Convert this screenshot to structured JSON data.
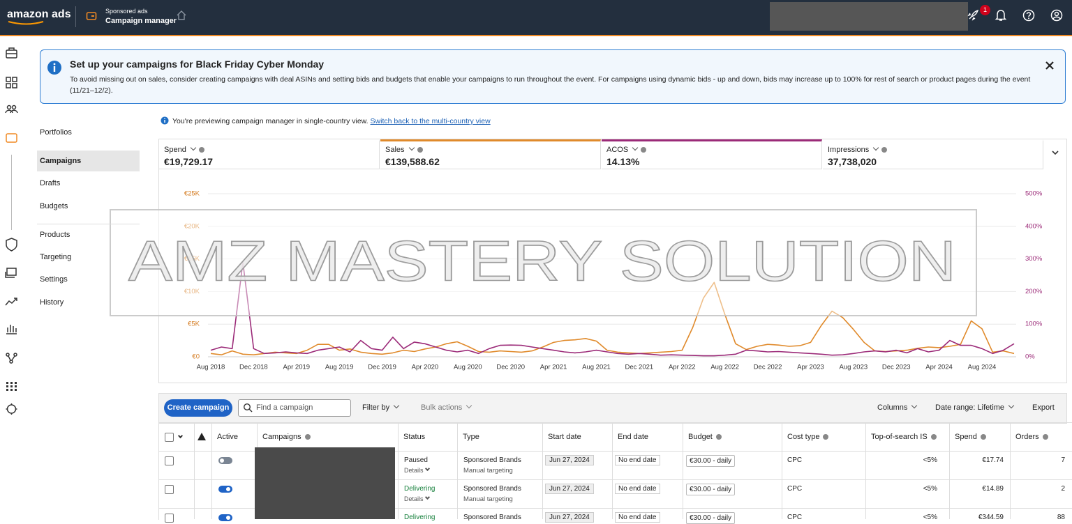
{
  "topbar": {
    "brand": "amazon ads",
    "section": "Sponsored ads",
    "page": "Campaign manager",
    "notification_count": 1
  },
  "banner": {
    "title": "Set up your campaigns for Black Friday Cyber Monday",
    "text": "To avoid missing out on sales, consider creating campaigns with deal ASINs and setting bids and budgets that enable your campaigns to run throughout the event. For campaigns using dynamic bids - up and down, bids may increase up to 100% for rest of search or product pages during the event (11/21–12/2)."
  },
  "nav": [
    "Portfolios",
    "Campaigns",
    "Drafts",
    "Budgets",
    "Products",
    "Targeting",
    "Settings",
    "History"
  ],
  "preview": {
    "text": "You're previewing campaign manager in single-country view.",
    "link": "Switch back to the multi-country view"
  },
  "metrics": [
    {
      "label": "Spend",
      "value": "€19,729.17"
    },
    {
      "label": "Sales",
      "value": "€139,588.62",
      "color": "#e08a2b"
    },
    {
      "label": "ACOS",
      "value": "14.13%",
      "color": "#9b2a78"
    },
    {
      "label": "Impressions",
      "value": "37,738,020"
    }
  ],
  "chart_data": {
    "type": "line",
    "categories": [
      "Aug 2018",
      null,
      null,
      null,
      "Dec 2018",
      null,
      null,
      null,
      "Apr 2019",
      null,
      null,
      null,
      "Aug 2019",
      null,
      null,
      null,
      "Dec 2019",
      null,
      null,
      null,
      "Apr 2020",
      null,
      null,
      null,
      "Aug 2020",
      null,
      null,
      null,
      "Dec 2020",
      null,
      null,
      null,
      "Apr 2021",
      null,
      null,
      null,
      "Aug 2021",
      null,
      null,
      null,
      "Dec 2021",
      null,
      null,
      null,
      "Apr 2022",
      null,
      null,
      null,
      "Aug 2022",
      null,
      null,
      null,
      "Dec 2022",
      null,
      null,
      null,
      "Apr 2023",
      null,
      null,
      null,
      "Aug 2023",
      null,
      null,
      null,
      "Dec 2023",
      null,
      null,
      null,
      "Apr 2024",
      null,
      null,
      null,
      "Aug 2024",
      null,
      null,
      null
    ],
    "series": [
      {
        "color": "#e08a2b",
        "values": [
          500,
          300,
          900,
          400,
          300,
          500,
          700,
          600,
          500,
          1000,
          1900,
          1900,
          1000,
          1200,
          700,
          500,
          400,
          600,
          1000,
          800,
          1200,
          1500,
          2000,
          2300,
          1600,
          800,
          700,
          900,
          800,
          700,
          900,
          1500,
          2200,
          2500,
          2600,
          2800,
          2400,
          1000,
          700,
          600,
          500,
          600,
          700,
          800,
          1000,
          4500,
          9000,
          11400,
          6500,
          2000,
          1100,
          1600,
          1900,
          1800,
          1600,
          1700,
          2200,
          4800,
          7000,
          6000,
          4200,
          2200,
          900,
          800,
          900,
          1000,
          1300,
          1500,
          1400,
          1600,
          1900,
          5500,
          4300,
          700,
          900,
          500
        ]
      },
      {
        "color": "#9b2a78",
        "axis": "y2",
        "values": [
          20,
          30,
          25,
          290,
          25,
          10,
          12,
          15,
          12,
          10,
          20,
          25,
          30,
          15,
          50,
          25,
          20,
          60,
          25,
          45,
          40,
          30,
          20,
          15,
          20,
          10,
          25,
          35,
          36,
          35,
          30,
          25,
          20,
          15,
          12,
          15,
          20,
          15,
          10,
          8,
          10,
          8,
          5,
          6,
          5,
          4,
          3,
          3,
          5,
          8,
          20,
          18,
          15,
          16,
          14,
          12,
          10,
          8,
          5,
          6,
          10,
          15,
          18,
          15,
          20,
          12,
          25,
          15,
          20,
          50,
          35,
          35,
          25,
          10,
          20,
          40
        ]
      }
    ],
    "ylim": [
      0,
      25000
    ],
    "yticks": [
      {
        "value": 0,
        "label": "€0"
      },
      {
        "value": 5000,
        "label": "€5K"
      },
      {
        "value": 10000,
        "label": "€10K"
      },
      {
        "value": 15000,
        "label": "€15K"
      },
      {
        "value": 20000,
        "label": "€20K"
      },
      {
        "value": 25000,
        "label": "€25K"
      }
    ],
    "y2lim": [
      0,
      500
    ],
    "y2ticks": [
      {
        "value": 0,
        "label": "0%"
      },
      {
        "value": 100,
        "label": "100%"
      },
      {
        "value": 200,
        "label": "200%"
      },
      {
        "value": 300,
        "label": "300%"
      },
      {
        "value": 400,
        "label": "400%"
      },
      {
        "value": 500,
        "label": "500%"
      }
    ],
    "grid": true
  },
  "watermark": "AMZ MASTERY SOLUTION",
  "toolbar": {
    "create": "Create campaign",
    "search_placeholder": "Find a campaign",
    "filter": "Filter by",
    "bulk": "Bulk actions",
    "columns": "Columns",
    "date_range": "Date range: Lifetime",
    "export": "Export"
  },
  "table": {
    "headers": [
      "Active",
      "Campaigns",
      "Status",
      "Type",
      "Start date",
      "End date",
      "Budget",
      "Cost type",
      "Top-of-search IS",
      "Spend",
      "Orders"
    ],
    "rows": [
      {
        "active": false,
        "status": "Paused",
        "status_color": "#222222",
        "status_detail": "Details",
        "type": "Sponsored Brands",
        "targeting": "Manual targeting",
        "start_date": "Jun 27, 2024",
        "end_date": "No end date",
        "budget": "€30.00 - daily",
        "cost_type": "CPC",
        "top_of_search_is": "<5%",
        "spend": "€17.74",
        "orders": 7
      },
      {
        "active": true,
        "status": "Delivering",
        "status_color": "#16803c",
        "status_detail": "Details",
        "type": "Sponsored Brands",
        "targeting": "Manual targeting",
        "start_date": "Jun 27, 2024",
        "end_date": "No end date",
        "budget": "€30.00 - daily",
        "cost_type": "CPC",
        "top_of_search_is": "<5%",
        "spend": "€14.89",
        "orders": 2
      },
      {
        "active": true,
        "status": "Delivering",
        "status_color": "#16803c",
        "type": "Sponsored Brands",
        "start_date": "Jun 27, 2024",
        "end_date": "No end date",
        "budget": "€30.00 - daily",
        "cost_type": "CPC",
        "top_of_search_is": "<5%",
        "spend": "€344.59",
        "orders": 88
      }
    ]
  }
}
